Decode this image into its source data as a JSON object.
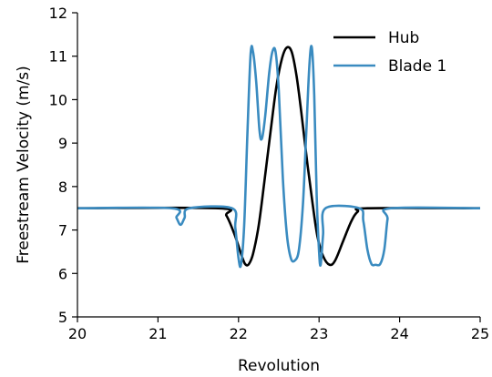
{
  "chart_data": {
    "type": "line",
    "title": "",
    "xlabel": "Revolution",
    "ylabel": "Freestream Velocity (m/s)",
    "xlim": [
      20,
      25
    ],
    "ylim": [
      5,
      12
    ],
    "xticks": [
      20,
      21,
      22,
      23,
      24,
      25
    ],
    "yticks": [
      5,
      6,
      7,
      8,
      9,
      10,
      11,
      12
    ],
    "grid": false,
    "legend": "top-right",
    "series": [
      {
        "name": "Hub",
        "color": "#000000",
        "points": [
          [
            20.0,
            7.5
          ],
          [
            21.75,
            7.5
          ],
          [
            21.85,
            7.33
          ],
          [
            21.95,
            6.9
          ],
          [
            22.05,
            6.35
          ],
          [
            22.09,
            6.2
          ],
          [
            22.13,
            6.22
          ],
          [
            22.18,
            6.45
          ],
          [
            22.25,
            7.1
          ],
          [
            22.32,
            8.1
          ],
          [
            22.4,
            9.3
          ],
          [
            22.47,
            10.3
          ],
          [
            22.54,
            10.95
          ],
          [
            22.6,
            11.2
          ],
          [
            22.66,
            11.1
          ],
          [
            22.72,
            10.55
          ],
          [
            22.78,
            9.7
          ],
          [
            22.85,
            8.6
          ],
          [
            22.92,
            7.6
          ],
          [
            22.98,
            6.85
          ],
          [
            23.05,
            6.4
          ],
          [
            23.13,
            6.2
          ],
          [
            23.2,
            6.3
          ],
          [
            23.3,
            6.75
          ],
          [
            23.4,
            7.2
          ],
          [
            23.48,
            7.42
          ],
          [
            23.6,
            7.5
          ],
          [
            25.0,
            7.5
          ]
        ]
      },
      {
        "name": "Blade 1",
        "color": "#3a8bc0",
        "points": [
          [
            20.0,
            7.5
          ],
          [
            21.17,
            7.5
          ],
          [
            21.23,
            7.28
          ],
          [
            21.28,
            7.12
          ],
          [
            21.33,
            7.28
          ],
          [
            21.39,
            7.5
          ],
          [
            21.92,
            7.5
          ],
          [
            21.96,
            7.05
          ],
          [
            22.0,
            6.35
          ],
          [
            22.03,
            6.2
          ],
          [
            22.07,
            7.1
          ],
          [
            22.11,
            9.2
          ],
          [
            22.15,
            11.05
          ],
          [
            22.18,
            11.1
          ],
          [
            22.22,
            10.4
          ],
          [
            22.26,
            9.3
          ],
          [
            22.29,
            9.1
          ],
          [
            22.33,
            9.6
          ],
          [
            22.38,
            10.6
          ],
          [
            22.42,
            11.1
          ],
          [
            22.46,
            11.1
          ],
          [
            22.5,
            10.2
          ],
          [
            22.55,
            8.2
          ],
          [
            22.6,
            6.9
          ],
          [
            22.65,
            6.35
          ],
          [
            22.7,
            6.3
          ],
          [
            22.75,
            6.55
          ],
          [
            22.8,
            7.6
          ],
          [
            22.84,
            9.2
          ],
          [
            22.88,
            10.8
          ],
          [
            22.91,
            11.2
          ],
          [
            22.94,
            10.1
          ],
          [
            22.97,
            7.8
          ],
          [
            23.0,
            6.5
          ],
          [
            23.02,
            6.2
          ],
          [
            23.05,
            6.9
          ],
          [
            23.08,
            7.5
          ],
          [
            23.5,
            7.5
          ],
          [
            23.55,
            7.2
          ],
          [
            23.6,
            6.55
          ],
          [
            23.65,
            6.22
          ],
          [
            23.7,
            6.2
          ],
          [
            23.76,
            6.22
          ],
          [
            23.81,
            6.55
          ],
          [
            23.85,
            7.25
          ],
          [
            23.89,
            7.5
          ],
          [
            25.0,
            7.5
          ]
        ]
      }
    ]
  }
}
